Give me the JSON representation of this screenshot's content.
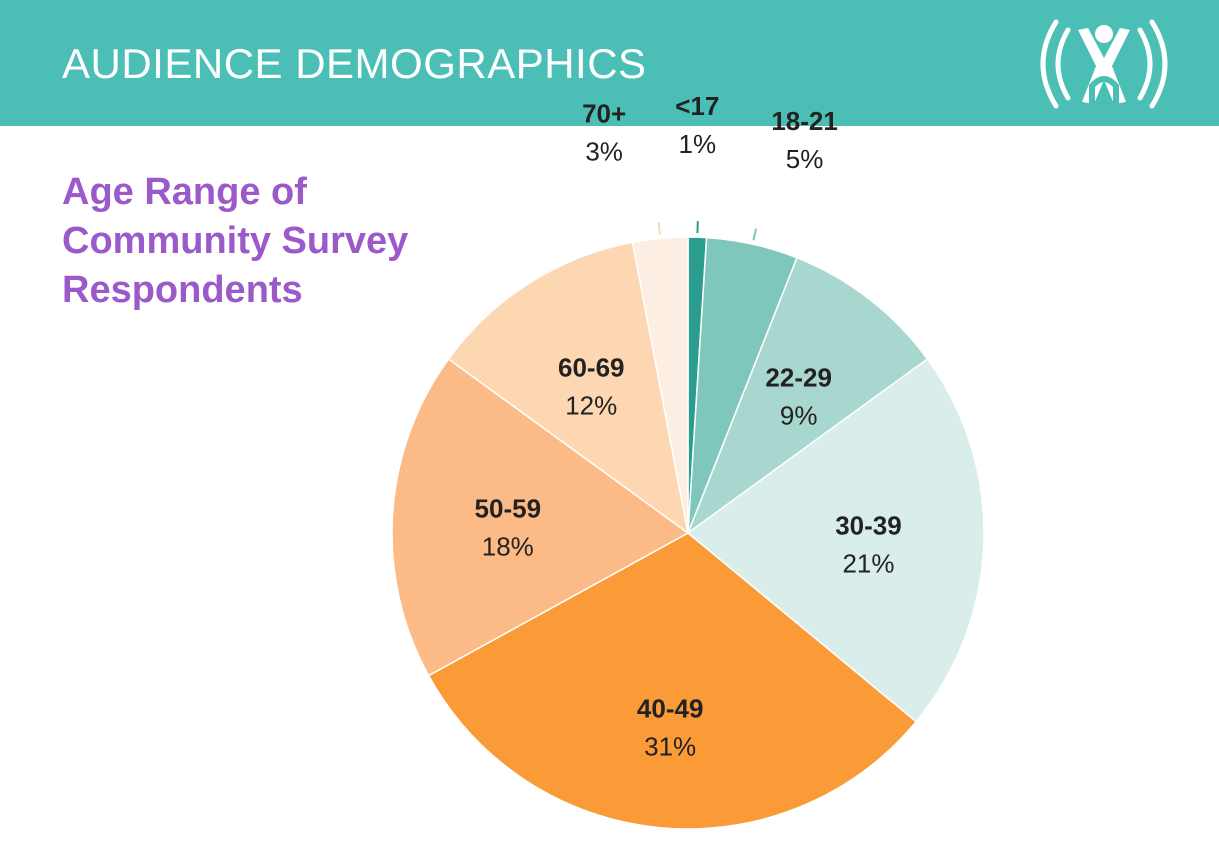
{
  "header": {
    "title": "AUDIENCE DEMOGRAPHICS",
    "logo_icon": "person-broadcast-icon",
    "color": "#4bbfb6"
  },
  "chart_data": {
    "type": "pie",
    "title": "Age Range of Community Survey Respondents",
    "title_lines": [
      "Age Range of",
      "Community Survey",
      "Respondents"
    ],
    "title_color": "#9b59c9",
    "start": "top",
    "direction": "clockwise",
    "slices": [
      {
        "label": "<17",
        "value": 1,
        "display": "1%",
        "color": "#2a9d8f",
        "label_position": "outside"
      },
      {
        "label": "18-21",
        "value": 5,
        "display": "5%",
        "color": "#7fc6bd",
        "label_position": "outside"
      },
      {
        "label": "22-29",
        "value": 9,
        "display": "9%",
        "color": "#a8d7d0",
        "label_position": "inside"
      },
      {
        "label": "30-39",
        "value": 21,
        "display": "21%",
        "color": "#d9eeea",
        "label_position": "inside"
      },
      {
        "label": "40-49",
        "value": 31,
        "display": "31%",
        "color": "#fb9b37",
        "label_position": "inside"
      },
      {
        "label": "50-59",
        "value": 18,
        "display": "18%",
        "color": "#fcba86",
        "label_position": "inside"
      },
      {
        "label": "60-69",
        "value": 12,
        "display": "12%",
        "color": "#fdd6b2",
        "label_position": "inside"
      },
      {
        "label": "70+",
        "value": 3,
        "display": "3%",
        "color": "#fdeee3",
        "label_position": "outside"
      }
    ]
  }
}
